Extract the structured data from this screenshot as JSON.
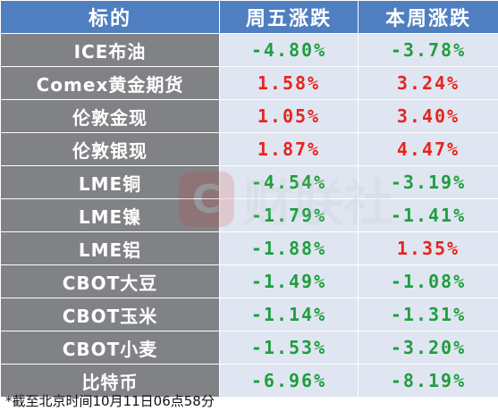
{
  "header": {
    "col_name": "标的",
    "col_week_fri": "周五涨跌",
    "col_week": "本周涨跌"
  },
  "rows": [
    {
      "name": "ICE布油",
      "fri": "-4.80%",
      "week": "-3.78%"
    },
    {
      "name": "Comex黄金期货",
      "fri": "1.58%",
      "week": "3.24%"
    },
    {
      "name": "伦敦金现",
      "fri": "1.05%",
      "week": "3.40%"
    },
    {
      "name": "伦敦银现",
      "fri": "1.87%",
      "week": "4.47%"
    },
    {
      "name": "LME铜",
      "fri": "-4.54%",
      "week": "-3.19%"
    },
    {
      "name": "LME镍",
      "fri": "-1.79%",
      "week": "-1.41%"
    },
    {
      "name": "LME铝",
      "fri": "-1.88%",
      "week": "1.35%"
    },
    {
      "name": "CBOT大豆",
      "fri": "-1.49%",
      "week": "-1.08%"
    },
    {
      "name": "CBOT玉米",
      "fri": "-1.14%",
      "week": "-1.31%"
    },
    {
      "name": "CBOT小麦",
      "fri": "-1.53%",
      "week": "-3.20%"
    },
    {
      "name": "比特币",
      "fri": "-6.96%",
      "week": "-8.19%"
    }
  ],
  "footnote": "*截至北京时间10月11日06点58分",
  "colors": {
    "header_bg": "#4f7fc0",
    "name_bg": "#808285",
    "value_bg": "#dfe6f1",
    "up": "#e8231e",
    "down": "#1e9e3e"
  },
  "watermark": {
    "icon": "cailian-logo-icon",
    "logo_glyph": "C",
    "text": "财联社"
  }
}
